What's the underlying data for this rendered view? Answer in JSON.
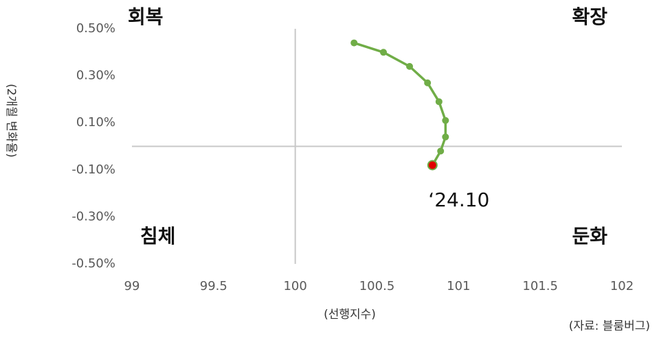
{
  "chart_data": {
    "type": "scatter",
    "x_label": "(선행지수)",
    "y_label": "(2개월 변화율)",
    "source": "(자료: 블룸버그)",
    "quadrants": {
      "top_left": "회복",
      "top_right": "확장",
      "bottom_left": "침체",
      "bottom_right": "둔화"
    },
    "annotation": "‘24.10",
    "xlim": [
      99,
      102
    ],
    "xticks": [
      99,
      99.5,
      100,
      100.5,
      101,
      101.5,
      102
    ],
    "ylim": [
      -0.5,
      0.5
    ],
    "yticks": [
      {
        "value": -0.5,
        "label": "-0.50%"
      },
      {
        "value": -0.3,
        "label": "-0.30%"
      },
      {
        "value": -0.1,
        "label": "-0.10%"
      },
      {
        "value": 0.1,
        "label": "0.10%"
      },
      {
        "value": 0.3,
        "label": "0.30%"
      },
      {
        "value": 0.5,
        "label": "0.50%"
      }
    ],
    "origin": [
      100,
      0
    ],
    "axis_color": "#c8c8c8",
    "grid": false,
    "series": [
      {
        "color": "#70ad47",
        "highlight_color": "#e00000",
        "x": [
          100.36,
          100.54,
          100.7,
          100.81,
          100.88,
          100.92,
          100.92,
          100.89,
          100.84
        ],
        "values": [
          0.44,
          0.4,
          0.34,
          0.27,
          0.19,
          0.11,
          0.04,
          -0.02,
          -0.08
        ]
      }
    ]
  }
}
